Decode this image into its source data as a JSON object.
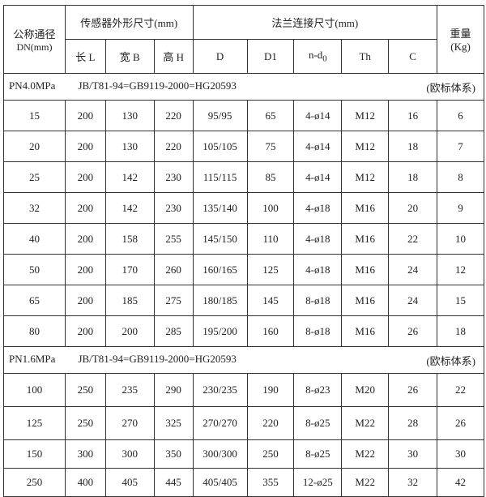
{
  "header": {
    "dn": "公称通径",
    "dn_unit": "DN(mm)",
    "sensor": "传感器外形尺寸(mm)",
    "flange": "法兰连接尺寸(mm)",
    "weight": "重量",
    "weight_unit": "(Kg)",
    "cols": [
      "长 L",
      "宽 B",
      "高 H",
      "D",
      "D1",
      "n-d",
      "Th",
      "C"
    ],
    "nd_sub": "0"
  },
  "sections": [
    {
      "pressure": "PN4.0MPa",
      "standard": "JB/T81-94=GB9119-2000=HG20593",
      "system": "(欧标体系)",
      "rows": [
        [
          "15",
          "200",
          "130",
          "220",
          "95/95",
          "65",
          "4-ø14",
          "M12",
          "16",
          "6"
        ],
        [
          "20",
          "200",
          "130",
          "220",
          "105/105",
          "75",
          "4-ø14",
          "M12",
          "18",
          "7"
        ],
        [
          "25",
          "200",
          "142",
          "230",
          "115/115",
          "85",
          "4-ø14",
          "M12",
          "18",
          "8"
        ],
        [
          "32",
          "200",
          "142",
          "230",
          "135/140",
          "100",
          "4-ø18",
          "M16",
          "20",
          "9"
        ],
        [
          "40",
          "200",
          "158",
          "255",
          "145/150",
          "110",
          "4-ø18",
          "M16",
          "22",
          "10"
        ],
        [
          "50",
          "200",
          "170",
          "260",
          "160/165",
          "125",
          "4-ø18",
          "M16",
          "24",
          "12"
        ],
        [
          "65",
          "200",
          "185",
          "275",
          "180/185",
          "145",
          "8-ø18",
          "M16",
          "24",
          "15"
        ],
        [
          "80",
          "200",
          "200",
          "285",
          "195/200",
          "160",
          "8-ø18",
          "M16",
          "26",
          "18"
        ]
      ]
    },
    {
      "pressure": "PN1.6MPa",
      "standard": "JB/T81-94=GB9119-2000=HG20593",
      "system": "(欧标体系)",
      "rows": [
        [
          "100",
          "250",
          "235",
          "290",
          "230/235",
          "190",
          "8-ø23",
          "M20",
          "26",
          "22"
        ],
        [
          "125",
          "250",
          "270",
          "325",
          "270/270",
          "220",
          "8-ø25",
          "M22",
          "28",
          "26"
        ],
        [
          "150",
          "300",
          "300",
          "350",
          "300/300",
          "250",
          "8-ø25",
          "M22",
          "30",
          "30"
        ],
        [
          "250",
          "400",
          "405",
          "445",
          "405/405",
          "355",
          "12-ø25",
          "M22",
          "32",
          "42"
        ]
      ]
    }
  ]
}
